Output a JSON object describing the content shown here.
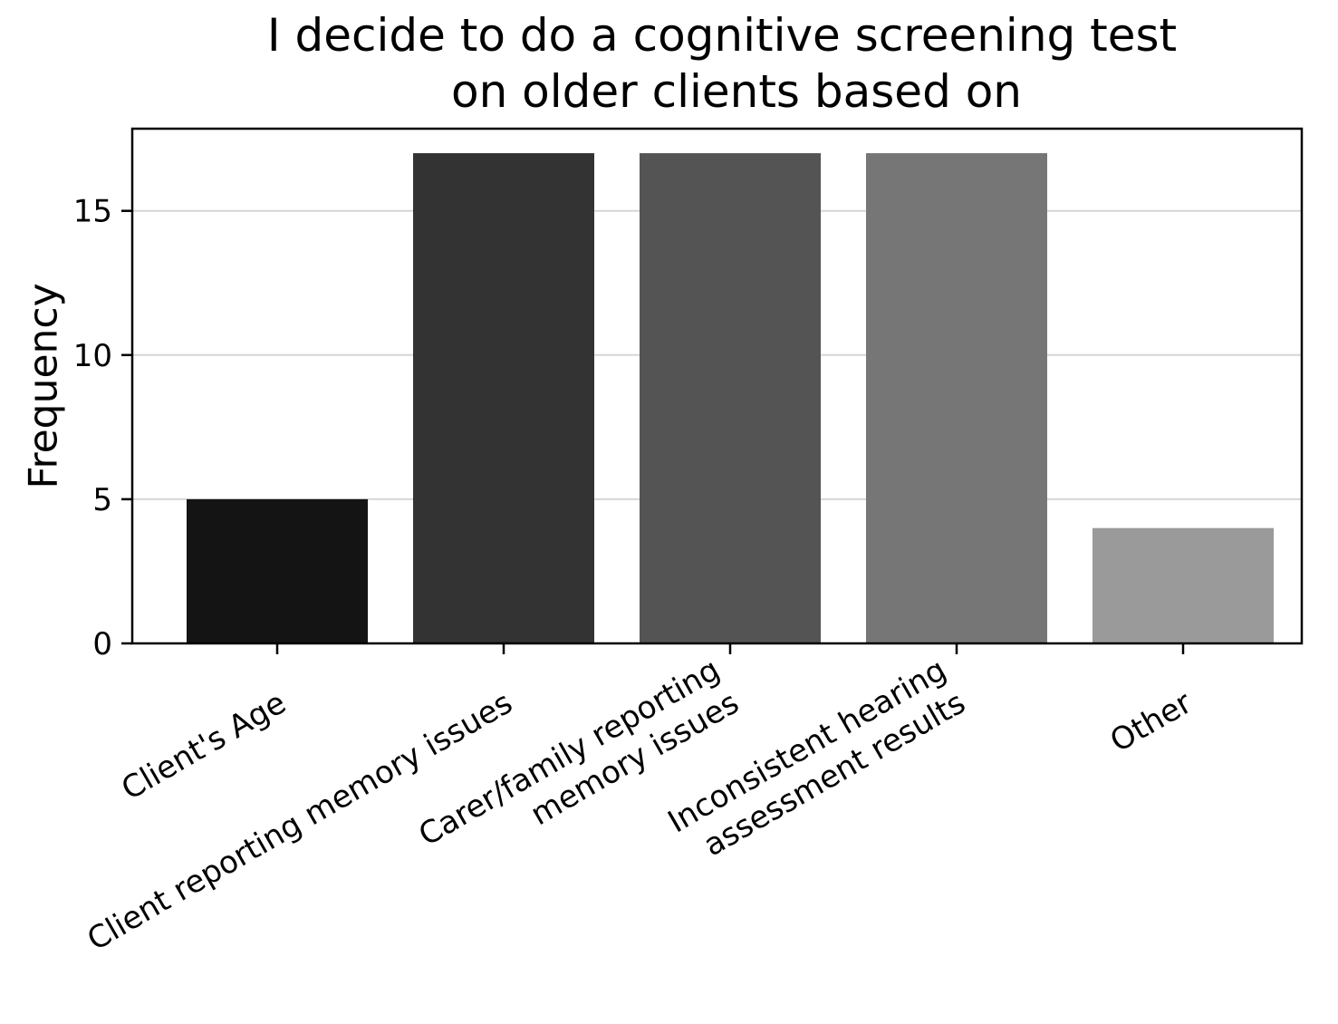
{
  "chart_data": {
    "type": "bar",
    "title_lines": [
      "I decide to do a cognitive screening test",
      "on older clients based on"
    ],
    "xlabel": "",
    "ylabel": "Frequency",
    "categories": [
      [
        "Client's Age"
      ],
      [
        "Client reporting memory issues"
      ],
      [
        "Carer/family reporting",
        "memory issues"
      ],
      [
        "Inconsistent hearing",
        "assessment results"
      ],
      [
        "Other"
      ]
    ],
    "values": [
      5,
      17,
      17,
      17,
      4
    ],
    "bar_colors": [
      "#141414",
      "#333333",
      "#545454",
      "#767676",
      "#9a9a9a"
    ],
    "ylim": [
      0,
      17.85
    ],
    "yticks": [
      0,
      5,
      10,
      15
    ],
    "grid": "y"
  }
}
